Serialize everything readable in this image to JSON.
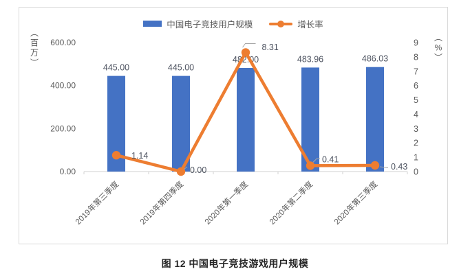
{
  "caption": {
    "text": "图 12 中国电子竞技游戏用户规模"
  },
  "colors": {
    "bar": "#4472C4",
    "line": "#ED7D31",
    "axis_text": "#595959",
    "data_label": "#4D5360",
    "axis_line": "#D2D2D2",
    "leader": "#A6A6A6",
    "frame_border": "#D9D9D9"
  },
  "chart_data": {
    "type": "bar",
    "subtype": "bar+line combo, dual axis",
    "title": "",
    "categories": [
      "2019年第三季度",
      "2019年第四季度",
      "2020年第一季度",
      "2020年第二季度",
      "2020年第三季度"
    ],
    "series": [
      {
        "name": "中国电子竞技用户规模",
        "chart": "bar",
        "axis": "left",
        "color": "#4472C4",
        "values": [
          445.0,
          445.0,
          482.0,
          483.96,
          486.03
        ],
        "labels": [
          "445.00",
          "445.00",
          "482.00",
          "483.96",
          "486.03"
        ]
      },
      {
        "name": "增长率",
        "chart": "line",
        "axis": "right",
        "color": "#ED7D31",
        "values": [
          1.14,
          0.0,
          8.31,
          0.41,
          0.43
        ],
        "labels": [
          "1.14",
          "0.00",
          "8.31",
          "0.41",
          "0.43"
        ]
      }
    ],
    "left_axis": {
      "unit": "（百万）",
      "min": 0,
      "max": 600,
      "tick_values": [
        0,
        200,
        400,
        600
      ],
      "tick_labels": [
        "0.00",
        "200.00",
        "400.00",
        "600.00"
      ]
    },
    "right_axis": {
      "unit": "（%）",
      "min": 0,
      "max": 9,
      "tick_values": [
        0,
        1,
        2,
        3,
        4,
        5,
        6,
        7,
        8,
        9
      ],
      "tick_labels": [
        "0",
        "1",
        "2",
        "3",
        "4",
        "5",
        "6",
        "7",
        "8",
        "9"
      ]
    },
    "legend_position": "top",
    "gridlines": false,
    "plot_background": "#ffffff"
  }
}
